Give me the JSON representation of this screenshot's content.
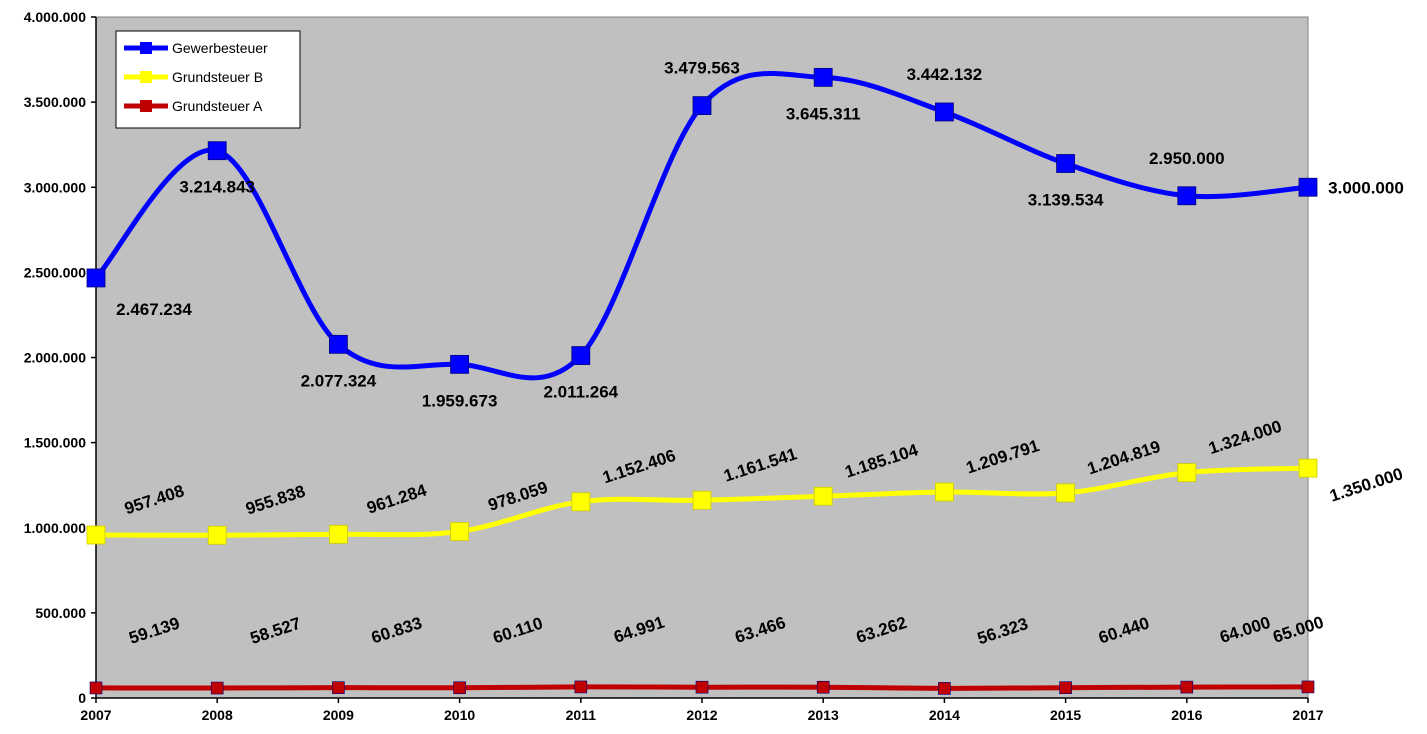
{
  "chart_data": {
    "type": "line",
    "title": "",
    "xlabel": "",
    "ylabel": "",
    "x": [
      "2007",
      "2008",
      "2009",
      "2010",
      "2011",
      "2012",
      "2013",
      "2014",
      "2015",
      "2016",
      "2017"
    ],
    "ylim": [
      0,
      4000000
    ],
    "yticks": [
      0,
      500000,
      1000000,
      1500000,
      2000000,
      2500000,
      3000000,
      3500000,
      4000000
    ],
    "ytick_labels": [
      "0",
      "500.000",
      "1.000.000",
      "1.500.000",
      "2.000.000",
      "2.500.000",
      "3.000.000",
      "3.500.000",
      "4.000.000"
    ],
    "grid": false,
    "legend_position": "top-left",
    "series": [
      {
        "name": "Gewerbesteuer",
        "color": "#0000ff",
        "values": [
          2467234,
          3214843,
          2077324,
          1959673,
          2011264,
          3479563,
          3645311,
          3442132,
          3139534,
          2950000,
          3000000
        ],
        "labels": [
          "2.467.234",
          "3.214.843",
          "2.077.324",
          "1.959.673",
          "2.011.264",
          "3.479.563",
          "3.645.311",
          "3.442.132",
          "3.139.534",
          "2.950.000",
          "3.000.000"
        ]
      },
      {
        "name": "Grundsteuer B",
        "color": "#ffff00",
        "values": [
          957408,
          955838,
          961284,
          978059,
          1152406,
          1161541,
          1185104,
          1209791,
          1204819,
          1324000,
          1350000
        ],
        "labels": [
          "957.408",
          "955.838",
          "961.284",
          "978.059",
          "1.152.406",
          "1.161.541",
          "1.185.104",
          "1.209.791",
          "1.204.819",
          "1.324.000",
          "1.350.000"
        ]
      },
      {
        "name": "Grundsteuer A",
        "color": "#c00000",
        "values": [
          59139,
          58527,
          60833,
          60110,
          64991,
          63466,
          63262,
          56323,
          60440,
          64000,
          65000
        ],
        "labels": [
          "59.139",
          "58.527",
          "60.833",
          "60.110",
          "64.991",
          "63.466",
          "63.262",
          "56.323",
          "60.440",
          "64.000",
          "65.000"
        ]
      }
    ]
  },
  "colors": {
    "plot_background": "#c0c0c0",
    "axis": "#000000"
  }
}
